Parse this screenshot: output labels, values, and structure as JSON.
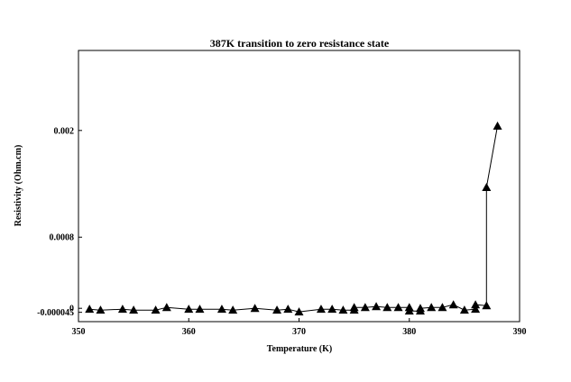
{
  "chart_data": {
    "type": "line",
    "title": "387K transition to zero resistance state",
    "xlabel": "Temperature (K)",
    "ylabel": "Resistivity (Ohm.cm)",
    "xlim": [
      350,
      390
    ],
    "ylim": [
      -0.00015,
      0.0029
    ],
    "xticks": [
      350,
      360,
      370,
      380,
      390
    ],
    "xtick_labels": [
      "350",
      "360",
      "370",
      "380",
      "390"
    ],
    "yticks": [
      -4.5e-05,
      0,
      0.0008,
      0.002
    ],
    "ytick_labels": [
      "-0.000045",
      "0",
      "0.0008",
      "0.002"
    ],
    "grid": false,
    "legend": "none",
    "marker": "triangle",
    "color": "#000000",
    "series": [
      {
        "x": [
          351,
          352,
          354,
          355,
          357,
          358,
          360,
          361,
          363,
          364,
          366,
          368,
          369,
          370,
          372,
          373,
          374,
          375,
          375,
          376,
          377,
          378,
          379,
          380,
          380,
          381,
          381,
          382,
          383,
          384,
          385,
          386,
          386,
          387,
          387,
          388
        ],
        "y": [
          -1e-05,
          -2e-05,
          -1e-05,
          -2e-05,
          -2e-05,
          1e-05,
          -1e-05,
          -1e-05,
          -1e-05,
          -2e-05,
          0.0,
          -2e-05,
          -1e-05,
          -4e-05,
          -1e-05,
          -1e-05,
          -2e-05,
          -2e-05,
          1e-05,
          1e-05,
          2e-05,
          1e-05,
          1e-05,
          1e-05,
          -3e-05,
          -3e-05,
          0.0,
          1e-05,
          1e-05,
          4e-05,
          -2e-05,
          -1e-05,
          4e-05,
          3e-05,
          0.00136,
          0.00205
        ]
      }
    ]
  }
}
